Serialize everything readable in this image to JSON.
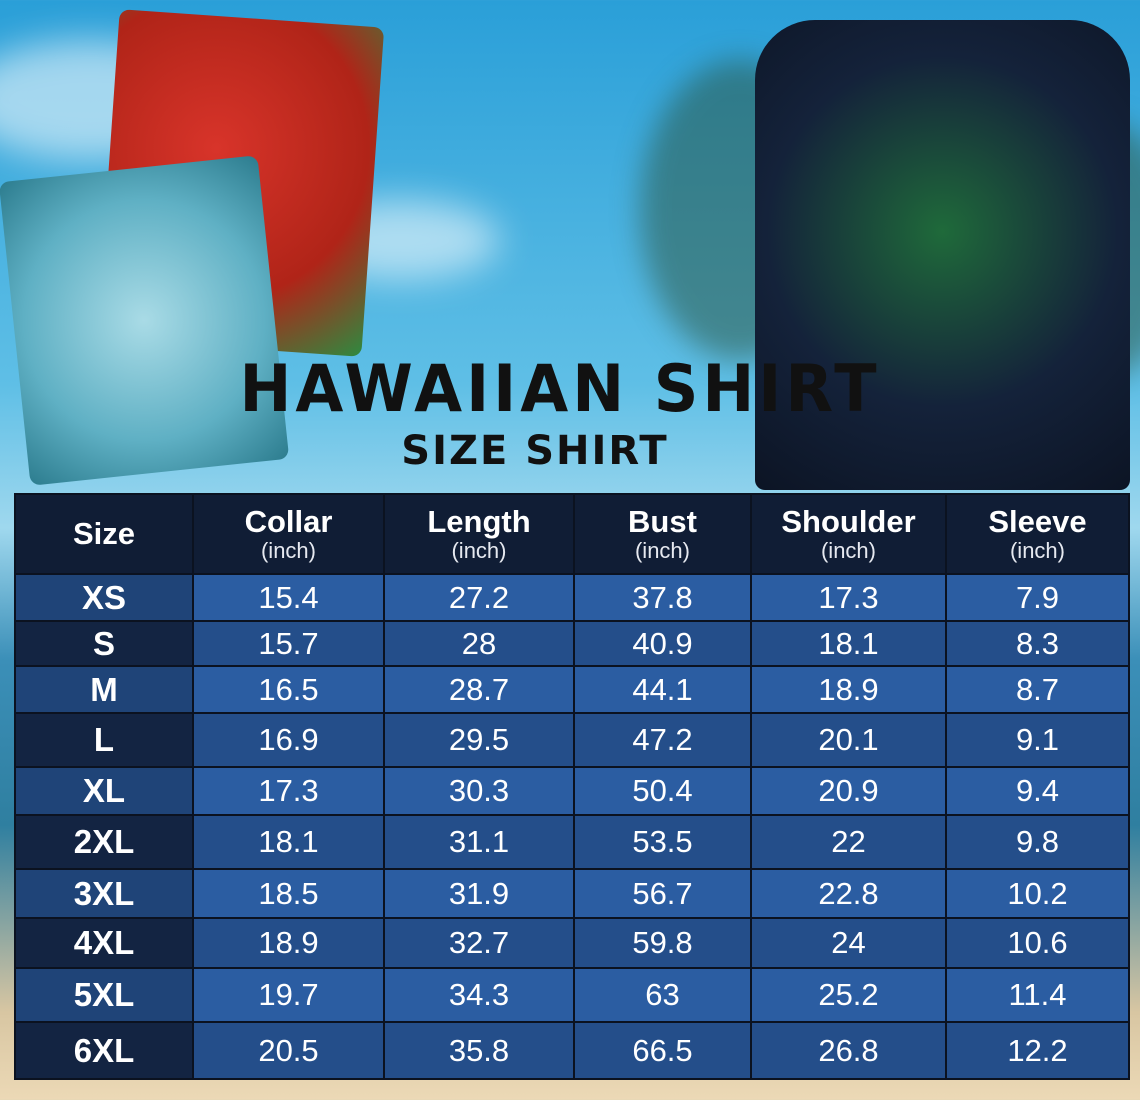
{
  "title": "HAWAIIAN SHIRT",
  "subtitle": "SIZE SHIRT",
  "colors": {
    "header": "#101d35",
    "row_light": "#2b5da2",
    "row_dark": "#244e8a",
    "size_col_dark": "#132442"
  },
  "table": {
    "headers": [
      {
        "label": "Size",
        "unit": ""
      },
      {
        "label": "Collar",
        "unit": "(inch)"
      },
      {
        "label": "Length",
        "unit": "(inch)"
      },
      {
        "label": "Bust",
        "unit": "(inch)"
      },
      {
        "label": "Shoulder",
        "unit": "(inch)"
      },
      {
        "label": "Sleeve",
        "unit": "(inch)"
      }
    ],
    "rows": [
      [
        "XS",
        "15.4",
        "27.2",
        "37.8",
        "17.3",
        "7.9"
      ],
      [
        "S",
        "15.7",
        "28",
        "40.9",
        "18.1",
        "8.3"
      ],
      [
        "M",
        "16.5",
        "28.7",
        "44.1",
        "18.9",
        "8.7"
      ],
      [
        "L",
        "16.9",
        "29.5",
        "47.2",
        "20.1",
        "9.1"
      ],
      [
        "XL",
        "17.3",
        "30.3",
        "50.4",
        "20.9",
        "9.4"
      ],
      [
        "2XL",
        "18.1",
        "31.1",
        "53.5",
        "22",
        "9.8"
      ],
      [
        "3XL",
        "18.5",
        "31.9",
        "56.7",
        "22.8",
        "10.2"
      ],
      [
        "4XL",
        "18.9",
        "32.7",
        "59.8",
        "24",
        "10.6"
      ],
      [
        "5XL",
        "19.7",
        "34.3",
        "63",
        "25.2",
        "11.4"
      ],
      [
        "6XL",
        "20.5",
        "35.8",
        "66.5",
        "26.8",
        "12.2"
      ]
    ]
  }
}
